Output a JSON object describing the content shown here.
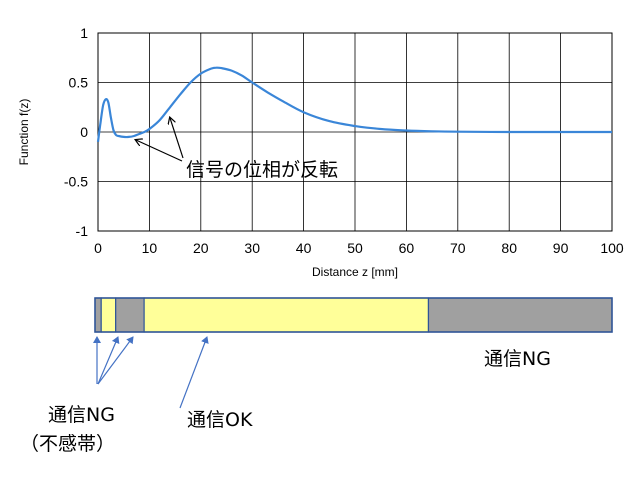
{
  "chart_data": {
    "type": "line",
    "xlabel": "Distance z [mm]",
    "ylabel": "Function f(z)",
    "xlim": [
      0,
      100
    ],
    "ylim": [
      -1,
      1
    ],
    "grid": true,
    "x_ticks": [
      "0",
      "10",
      "20",
      "30",
      "40",
      "50",
      "60",
      "70",
      "80",
      "90",
      "100"
    ],
    "y_ticks": [
      "1",
      "0.5",
      "0",
      "-0.5",
      "-1"
    ],
    "series": [
      {
        "color": "#3a86d8",
        "x": [
          0,
          0.5,
          1,
          1.5,
          2,
          2.5,
          3,
          3.5,
          4,
          5,
          6,
          7,
          8,
          9,
          10,
          12,
          14,
          16,
          18,
          20,
          22,
          23,
          24,
          26,
          28,
          30,
          33,
          36,
          40,
          45,
          50,
          55,
          60,
          65,
          70,
          80,
          90,
          100
        ],
        "y": [
          -0.1,
          0.1,
          0.27,
          0.33,
          0.3,
          0.15,
          0.02,
          -0.03,
          -0.04,
          -0.05,
          -0.05,
          -0.04,
          -0.02,
          0.0,
          0.03,
          0.12,
          0.25,
          0.38,
          0.5,
          0.59,
          0.64,
          0.65,
          0.645,
          0.62,
          0.57,
          0.5,
          0.4,
          0.31,
          0.2,
          0.11,
          0.06,
          0.03,
          0.015,
          0.007,
          0.003,
          0.0,
          0.0,
          0.0
        ]
      }
    ]
  },
  "annotations": {
    "phase_inversion": "信号の位相が反転"
  },
  "distance_bar": {
    "segments": [
      {
        "from": 0,
        "to": 1.2,
        "status": "ng",
        "color": "#a0a0a0"
      },
      {
        "from": 1.2,
        "to": 4,
        "status": "ok",
        "color": "#ffff99"
      },
      {
        "from": 4,
        "to": 9.5,
        "status": "ng",
        "color": "#a0a0a0"
      },
      {
        "from": 9.5,
        "to": 64.5,
        "status": "ok",
        "color": "#ffff99"
      },
      {
        "from": 64.5,
        "to": 100,
        "status": "ng",
        "color": "#a0a0a0"
      }
    ],
    "ng_label": "通信NG",
    "deadband_label_1": "通信NG",
    "deadband_label_2": "（不感帯）",
    "ok_label": "通信OK"
  },
  "colors": {
    "ok": "#ffff99",
    "ng": "#a0a0a0",
    "arrow": "#4472c4",
    "bar_border": "#2f5597"
  }
}
